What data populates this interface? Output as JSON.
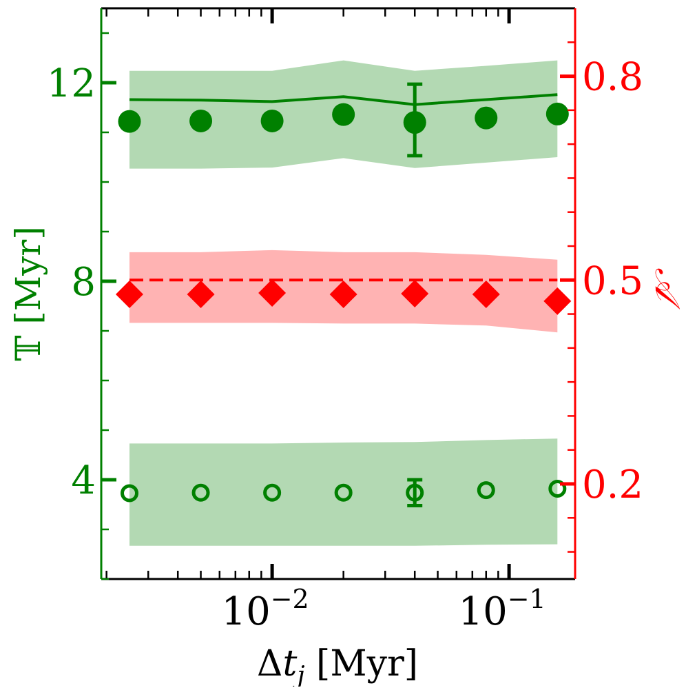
{
  "chart_data": {
    "type": "scatter",
    "x_scale": "log",
    "xlabel": "Δt_j [Myr]",
    "xlabel_parts": {
      "delta": "Δ",
      "var": "t",
      "sub": "j",
      "unit": " [Myr]"
    },
    "xlim": [
      0.0019,
      0.19
    ],
    "x_ticks": [
      {
        "value": 0.01,
        "base": "10",
        "exp": "−2"
      },
      {
        "value": 0.1,
        "base": "10",
        "exp": "−1"
      }
    ],
    "ylabel_left": "𝕋 [Myr]",
    "ylim_left": [
      2.0,
      13.5
    ],
    "y_ticks_left": [
      {
        "value": 4,
        "label": "4"
      },
      {
        "value": 8,
        "label": "8"
      },
      {
        "value": 12,
        "label": "12"
      }
    ],
    "ylabel_right": "𝒜",
    "ylim_right": [
      0.06,
      0.9
    ],
    "y_ticks_right": [
      {
        "value": 0.2,
        "label": "0.2"
      },
      {
        "value": 0.5,
        "label": "0.5"
      },
      {
        "value": 0.8,
        "label": "0.8"
      }
    ],
    "x": [
      0.0025,
      0.005,
      0.01,
      0.02,
      0.04,
      0.08,
      0.16
    ],
    "colors": {
      "green": "#008000",
      "green_band": "#b3d9b3",
      "red": "#ff0000",
      "red_band": "#ffb3b3"
    },
    "series": [
      {
        "axis": "left",
        "marker": "filled-circle",
        "color": "#008000",
        "values": [
          11.22,
          11.23,
          11.23,
          11.36,
          11.2,
          11.29,
          11.37
        ]
      },
      {
        "axis": "left",
        "marker": "line",
        "color": "#008000",
        "values": [
          11.66,
          11.65,
          11.62,
          11.72,
          11.56,
          11.66,
          11.76
        ]
      },
      {
        "axis": "left",
        "marker": "band",
        "color": "#b3d9b3",
        "upper": [
          12.24,
          12.24,
          12.24,
          12.45,
          12.24,
          12.34,
          12.45
        ],
        "lower": [
          10.27,
          10.27,
          10.29,
          10.48,
          10.28,
          10.39,
          10.5
        ]
      },
      {
        "axis": "left",
        "marker": "error-bar",
        "color": "#008000",
        "x_value": 0.04,
        "upper": 11.97,
        "lower": 10.53
      },
      {
        "axis": "right",
        "marker": "diamond",
        "color": "#ff0000",
        "values": [
          0.479,
          0.479,
          0.481,
          0.479,
          0.48,
          0.479,
          0.469
        ]
      },
      {
        "axis": "right",
        "marker": "band",
        "color": "#ffb3b3",
        "upper": [
          0.541,
          0.541,
          0.544,
          0.541,
          0.541,
          0.537,
          0.53
        ],
        "lower": [
          0.437,
          0.437,
          0.437,
          0.436,
          0.436,
          0.433,
          0.423
        ]
      },
      {
        "axis": "right",
        "marker": "dashed-line",
        "color": "#ff0000",
        "value": 0.5
      },
      {
        "axis": "left",
        "marker": "open-circle",
        "color": "#008000",
        "values": [
          3.73,
          3.74,
          3.74,
          3.74,
          3.74,
          3.79,
          3.82
        ]
      },
      {
        "axis": "left",
        "marker": "band",
        "color": "#b3d9b3",
        "upper": [
          4.73,
          4.73,
          4.73,
          4.75,
          4.76,
          4.8,
          4.83
        ],
        "lower": [
          2.67,
          2.67,
          2.67,
          2.67,
          2.67,
          2.69,
          2.7
        ]
      },
      {
        "axis": "left",
        "marker": "error-bar",
        "color": "#008000",
        "x_value": 0.04,
        "upper": 4.0,
        "lower": 3.48
      }
    ]
  }
}
